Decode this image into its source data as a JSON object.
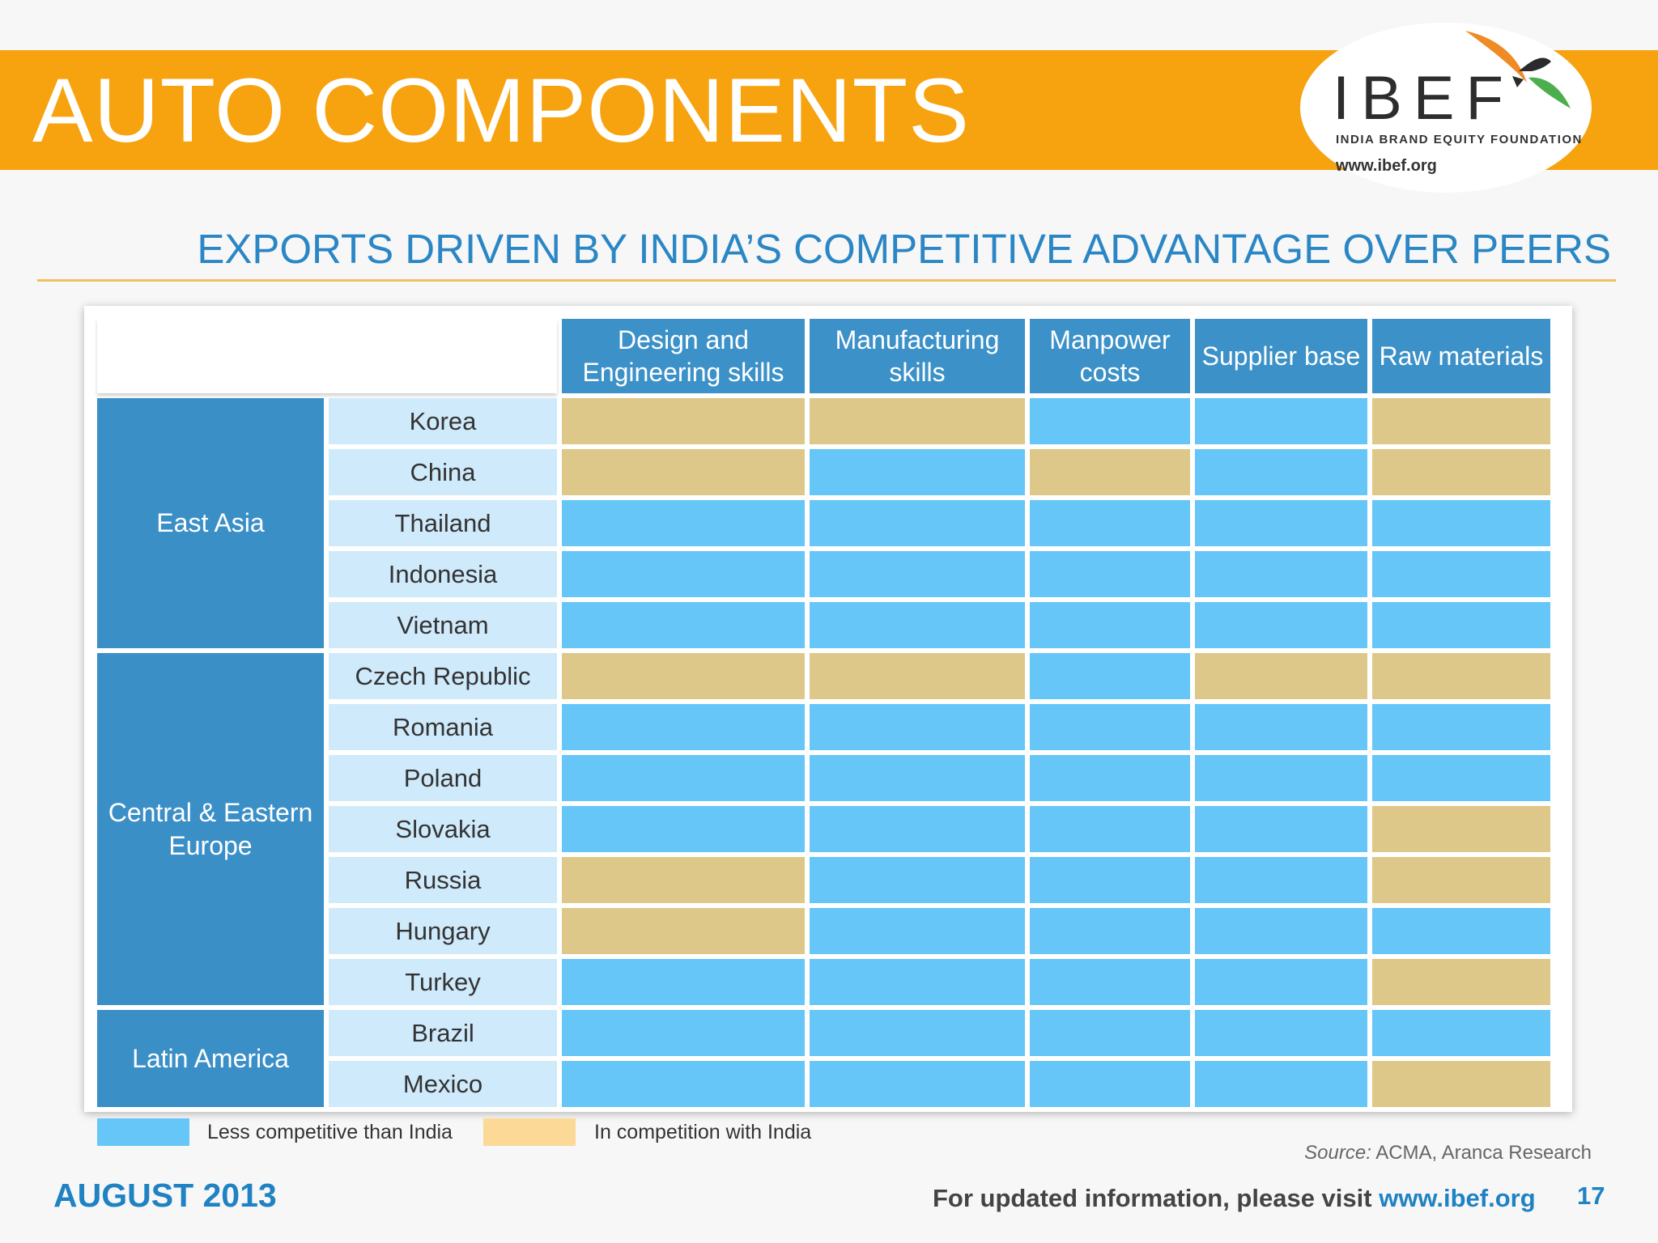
{
  "header": {
    "title": "AUTO COMPONENTS",
    "logo_word": "IBEF",
    "logo_tagline": "INDIA BRAND EQUITY FOUNDATION",
    "logo_url": "www.ibef.org"
  },
  "subtitle": "EXPORTS DRIVEN BY INDIA’S COMPETITIVE ADVANTAGE OVER PEERS",
  "colors": {
    "banner": "#f7a20f",
    "header_blue": "#3c91c8",
    "less_competitive": "#66c6f8",
    "in_competition": "#ddc88a",
    "legend_in_competition": "#fcd996"
  },
  "table": {
    "columns": [
      "Design and Engineering skills",
      "Manufacturing skills",
      "Manpower costs",
      "Supplier base",
      "Raw materials"
    ],
    "regions": [
      {
        "name": "East Asia",
        "countries": [
          {
            "name": "Korea",
            "cells": [
              "comp",
              "comp",
              "less",
              "less",
              "comp"
            ]
          },
          {
            "name": "China",
            "cells": [
              "comp",
              "less",
              "comp",
              "less",
              "comp"
            ]
          },
          {
            "name": "Thailand",
            "cells": [
              "less",
              "less",
              "less",
              "less",
              "less"
            ]
          },
          {
            "name": "Indonesia",
            "cells": [
              "less",
              "less",
              "less",
              "less",
              "less"
            ]
          },
          {
            "name": "Vietnam",
            "cells": [
              "less",
              "less",
              "less",
              "less",
              "less"
            ]
          }
        ]
      },
      {
        "name": "Central & Eastern Europe",
        "countries": [
          {
            "name": "Czech Republic",
            "cells": [
              "comp",
              "comp",
              "less",
              "comp",
              "comp"
            ]
          },
          {
            "name": "Romania",
            "cells": [
              "less",
              "less",
              "less",
              "less",
              "less"
            ]
          },
          {
            "name": "Poland",
            "cells": [
              "less",
              "less",
              "less",
              "less",
              "less"
            ]
          },
          {
            "name": "Slovakia",
            "cells": [
              "less",
              "less",
              "less",
              "less",
              "comp"
            ]
          },
          {
            "name": "Russia",
            "cells": [
              "comp",
              "less",
              "less",
              "less",
              "comp"
            ]
          },
          {
            "name": "Hungary",
            "cells": [
              "comp",
              "less",
              "less",
              "less",
              "less"
            ]
          },
          {
            "name": "Turkey",
            "cells": [
              "less",
              "less",
              "less",
              "less",
              "comp"
            ]
          }
        ]
      },
      {
        "name": "Latin America",
        "countries": [
          {
            "name": "Brazil",
            "cells": [
              "less",
              "less",
              "less",
              "less",
              "less"
            ]
          },
          {
            "name": "Mexico",
            "cells": [
              "less",
              "less",
              "less",
              "less",
              "comp"
            ]
          }
        ]
      }
    ]
  },
  "legend": {
    "less": "Less competitive than India",
    "comp": "In competition with India"
  },
  "source": {
    "label": "Source:",
    "text": " ACMA, Aranca Research"
  },
  "footer": {
    "date": "AUGUST 2013",
    "text": "For updated information, please visit ",
    "link": "www.ibef.org",
    "page": "17"
  }
}
